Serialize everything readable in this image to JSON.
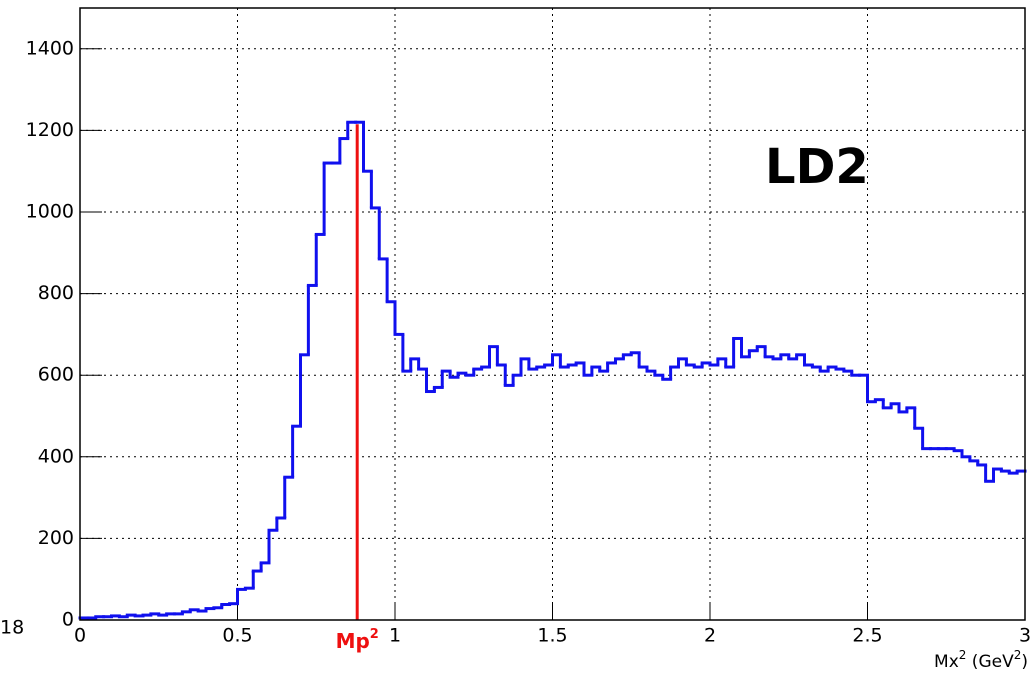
{
  "chart_data": {
    "type": "histogram",
    "annotation": "LD2",
    "clipped_text": "18",
    "x_label": [
      "Mx",
      "2",
      " (GeV",
      "2",
      ")"
    ],
    "color": "#1010ee",
    "bins": [
      0,
      0.025,
      0.05,
      0.075,
      0.1,
      0.125,
      0.15,
      0.175,
      0.2,
      0.225,
      0.25,
      0.275,
      0.3,
      0.325,
      0.35,
      0.375,
      0.4,
      0.425,
      0.45,
      0.475,
      0.5,
      0.525,
      0.55,
      0.575,
      0.6,
      0.625,
      0.65,
      0.675,
      0.7,
      0.725,
      0.75,
      0.775,
      0.8,
      0.825,
      0.85,
      0.875,
      0.9,
      0.925,
      0.95,
      0.975,
      1,
      1.025,
      1.05,
      1.075,
      1.1,
      1.125,
      1.15,
      1.175,
      1.2,
      1.225,
      1.25,
      1.275,
      1.3,
      1.325,
      1.35,
      1.375,
      1.4,
      1.425,
      1.45,
      1.475,
      1.5,
      1.525,
      1.55,
      1.575,
      1.6,
      1.625,
      1.65,
      1.675,
      1.7,
      1.725,
      1.75,
      1.775,
      1.8,
      1.825,
      1.85,
      1.875,
      1.9,
      1.925,
      1.95,
      1.975,
      2,
      2.025,
      2.05,
      2.075,
      2.1,
      2.125,
      2.15,
      2.175,
      2.2,
      2.225,
      2.25,
      2.275,
      2.3,
      2.325,
      2.35,
      2.375,
      2.4,
      2.425,
      2.45,
      2.475,
      2.5,
      2.525,
      2.55,
      2.575,
      2.6,
      2.625,
      2.65,
      2.675,
      2.7,
      2.725,
      2.75,
      2.775,
      2.8,
      2.825,
      2.85,
      2.875,
      2.9,
      2.925,
      2.95,
      2.975,
      3
    ],
    "values": [
      5,
      5,
      8,
      8,
      10,
      8,
      12,
      10,
      12,
      15,
      12,
      15,
      15,
      20,
      25,
      22,
      28,
      30,
      38,
      40,
      75,
      78,
      120,
      140,
      220,
      250,
      350,
      475,
      650,
      820,
      945,
      1120,
      1120,
      1180,
      1220,
      1220,
      1100,
      1010,
      885,
      780,
      700,
      610,
      640,
      615,
      560,
      570,
      610,
      595,
      605,
      600,
      615,
      620,
      670,
      625,
      575,
      600,
      640,
      615,
      620,
      625,
      650,
      620,
      625,
      630,
      600,
      620,
      610,
      630,
      640,
      650,
      655,
      620,
      610,
      600,
      590,
      620,
      640,
      625,
      620,
      630,
      625,
      640,
      620,
      690,
      645,
      660,
      670,
      645,
      640,
      650,
      640,
      650,
      625,
      620,
      610,
      620,
      615,
      610,
      600,
      600,
      535,
      540,
      520,
      530,
      510,
      520,
      470,
      420,
      420,
      420,
      420,
      415,
      400,
      390,
      380,
      340,
      370,
      365,
      360,
      365
    ],
    "reference_line": {
      "x": 0.88,
      "y_top": 1215,
      "color": "#ee1010",
      "label": [
        "Mp",
        "2"
      ]
    },
    "xlim": [
      0,
      3
    ],
    "xticks": [
      0,
      0.5,
      1,
      1.5,
      2,
      2.5,
      3
    ],
    "ylim": [
      0,
      1500
    ],
    "yticks": [
      0,
      200,
      400,
      600,
      800,
      1000,
      1200,
      1400
    ],
    "grid": true
  }
}
